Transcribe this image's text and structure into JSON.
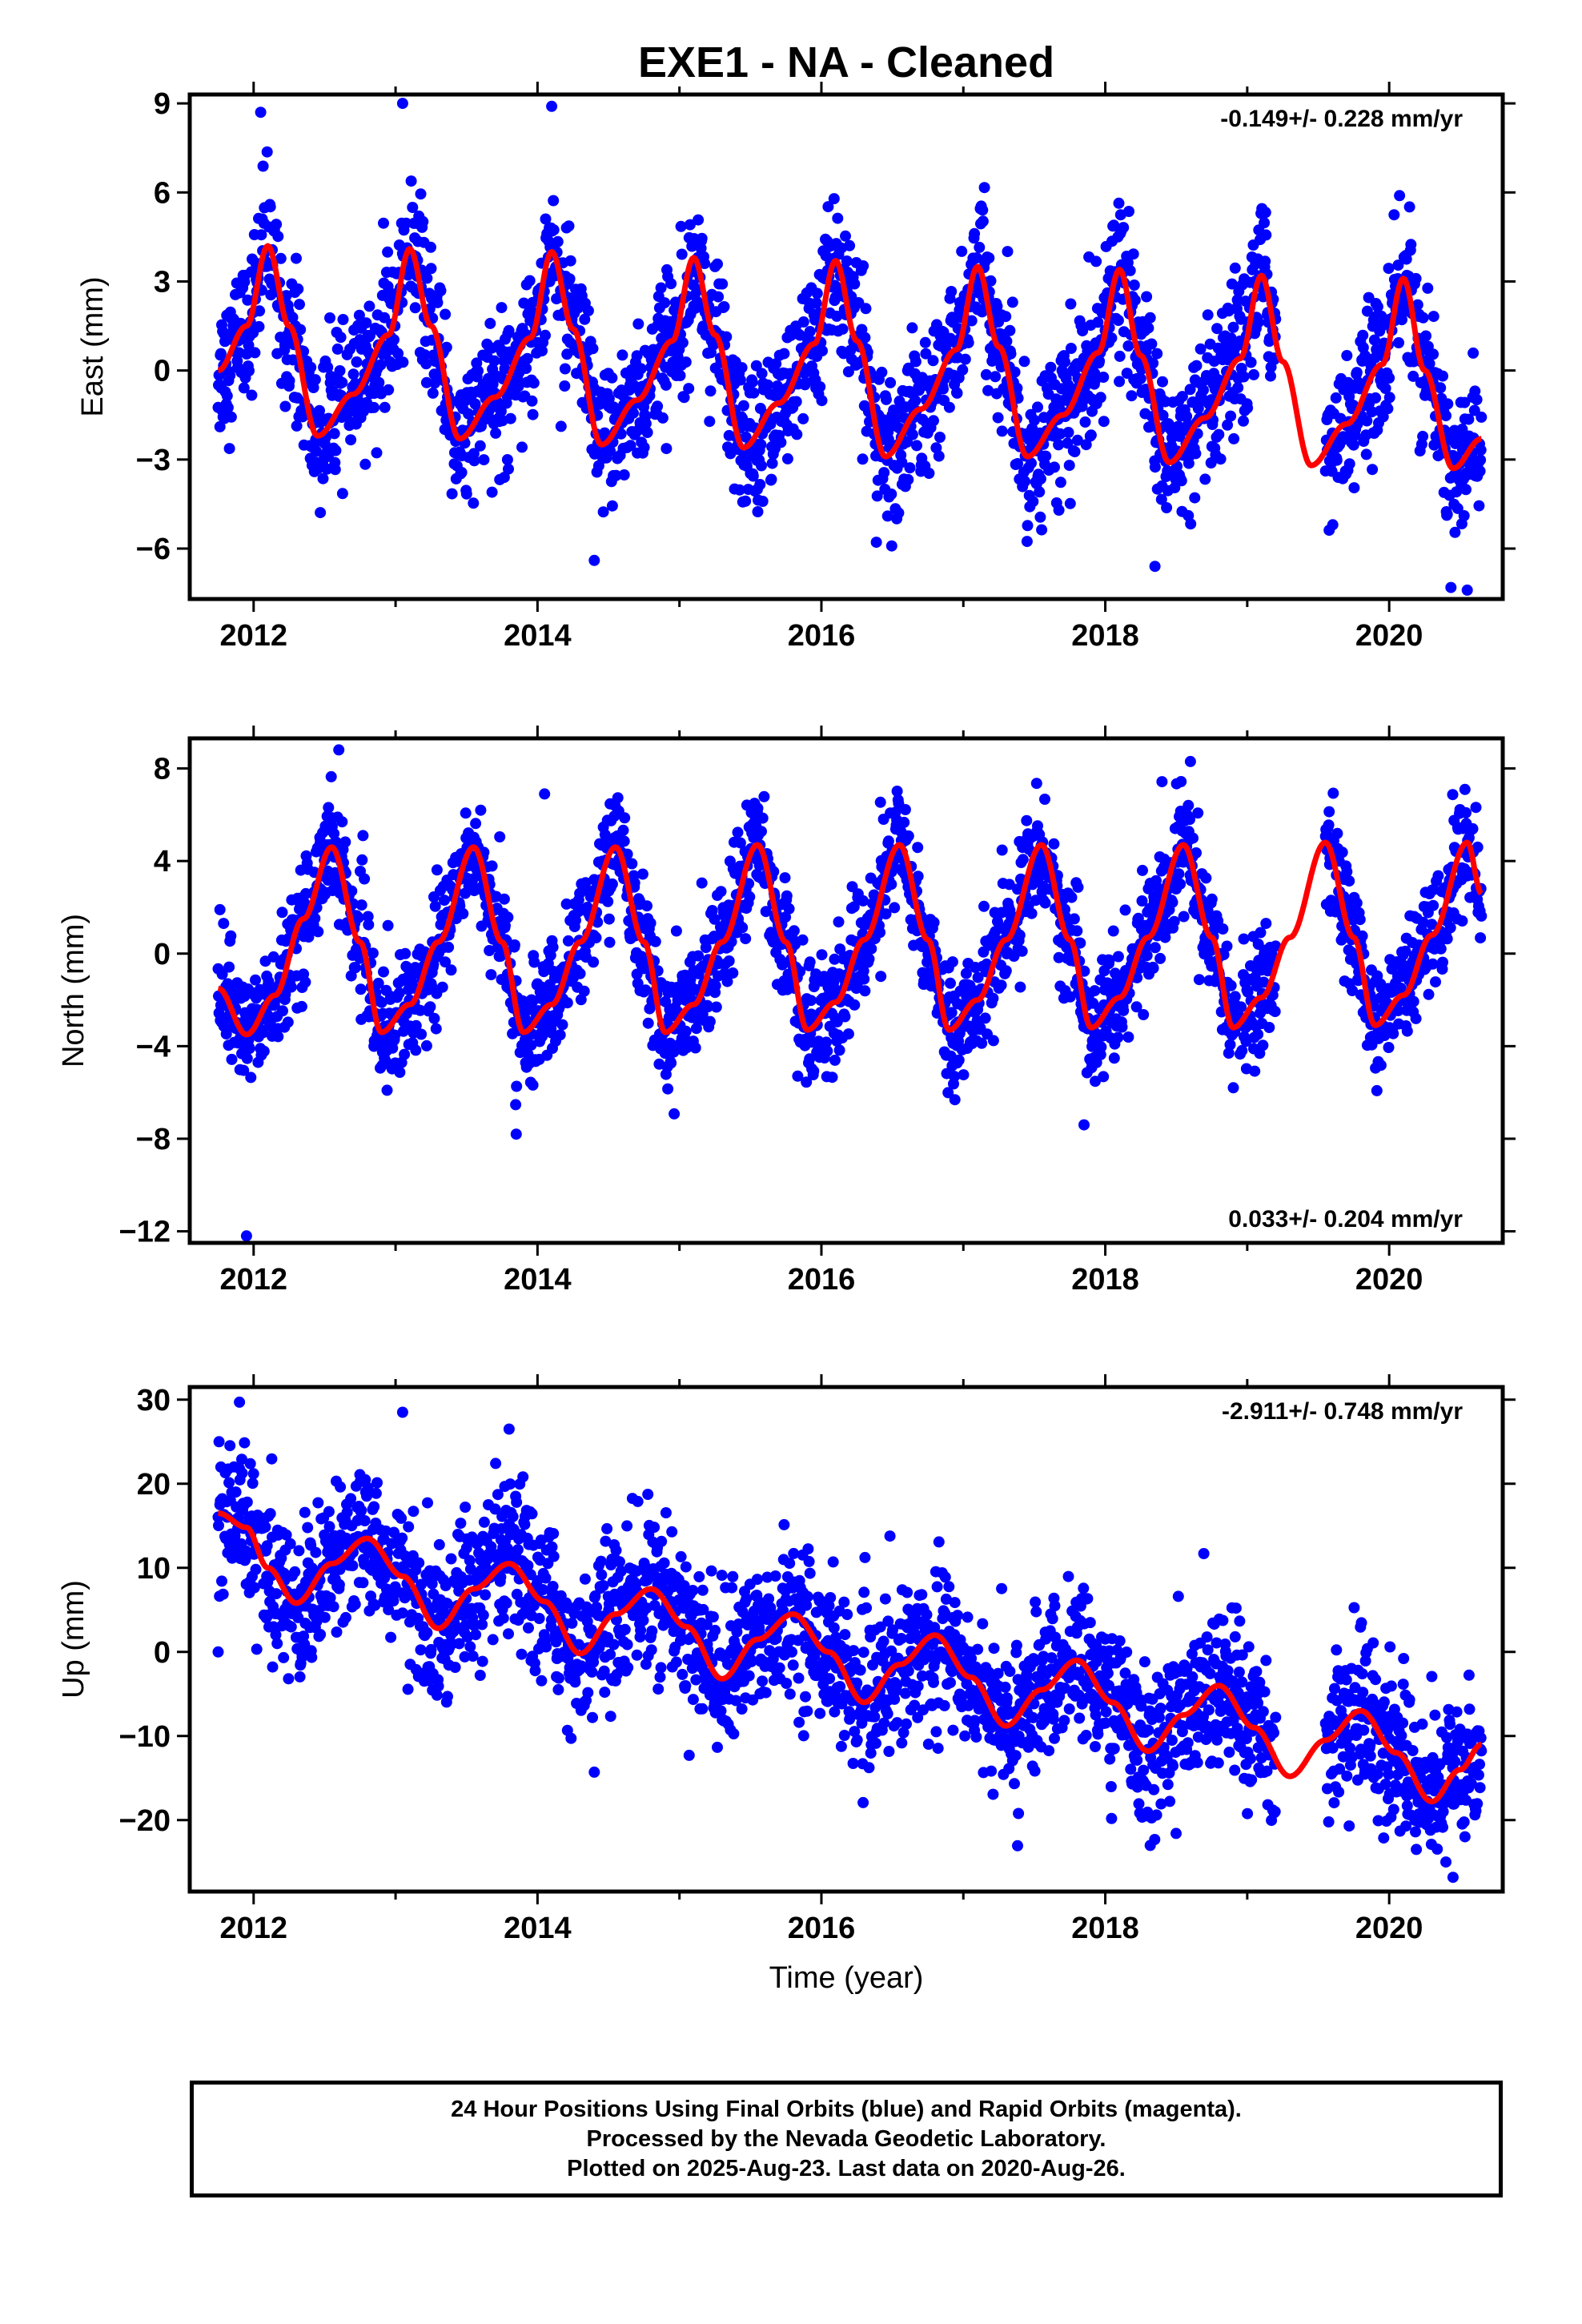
{
  "title": "EXE1  - NA - Cleaned",
  "colors": {
    "points": "#0000ff",
    "fit": "#ff0000",
    "frame": "#000000"
  },
  "xlabel": "Time (year)",
  "footer": {
    "line1": "24 Hour Positions Using Final Orbits (blue) and Rapid Orbits (magenta).",
    "line2": "Processed by the Nevada Geodetic Laboratory.",
    "line3": "Plotted on 2025-Aug-23. Last data on 2020-Aug-26."
  },
  "chart_data": [
    {
      "type": "scatter",
      "component": "east",
      "ylabel": "East (mm)",
      "rate": "-0.149+/- 0.228 mm/yr",
      "rate_position": "top-right",
      "xlim": [
        2011.55,
        2020.8
      ],
      "ylim": [
        -7.7,
        9.3
      ],
      "xticks": [
        2012,
        2014,
        2016,
        2018,
        2020
      ],
      "xtick_labels": [
        "2012",
        "2014",
        "2016",
        "2018",
        "2020"
      ],
      "yticks": [
        -6,
        -3,
        0,
        3,
        6,
        9
      ],
      "ytick_labels": [
        "−6",
        "−3",
        "0",
        "3",
        "6",
        "9"
      ],
      "data_start": 2011.75,
      "data_end": 2020.65,
      "gaps": [
        [
          2019.2,
          2019.55
        ]
      ],
      "scatter_sigma": 1.2,
      "outliers": [
        [
          2012.05,
          8.7
        ],
        [
          2013.05,
          9.0
        ],
        [
          2014.1,
          8.9
        ],
        [
          2014.4,
          -6.4
        ],
        [
          2018.35,
          -6.6
        ],
        [
          2020.55,
          -7.4
        ]
      ],
      "fit": {
        "x": [
          2011.75,
          2011.95,
          2012.1,
          2012.25,
          2012.45,
          2012.7,
          2012.95,
          2013.1,
          2013.25,
          2013.45,
          2013.7,
          2013.95,
          2014.1,
          2014.25,
          2014.45,
          2014.7,
          2014.95,
          2015.1,
          2015.25,
          2015.45,
          2015.7,
          2015.95,
          2016.1,
          2016.25,
          2016.45,
          2016.7,
          2016.95,
          2017.1,
          2017.25,
          2017.45,
          2017.7,
          2017.95,
          2018.1,
          2018.25,
          2018.45,
          2018.7,
          2018.95,
          2019.1,
          2019.25,
          2019.45,
          2019.7,
          2019.95,
          2020.1,
          2020.25,
          2020.45,
          2020.65
        ],
        "y": [
          0.0,
          1.5,
          4.2,
          1.5,
          -2.2,
          -0.8,
          1.2,
          4.1,
          1.5,
          -2.3,
          -0.9,
          1.1,
          4.0,
          1.4,
          -2.5,
          -1.0,
          1.0,
          3.8,
          1.2,
          -2.6,
          -1.1,
          0.9,
          3.7,
          1.0,
          -2.9,
          -1.3,
          0.7,
          3.5,
          0.8,
          -2.9,
          -1.5,
          0.6,
          3.4,
          0.5,
          -3.1,
          -1.6,
          0.4,
          3.2,
          0.3,
          -3.2,
          -1.8,
          0.2,
          3.1,
          0.0,
          -3.3,
          -2.3
        ]
      }
    },
    {
      "type": "scatter",
      "component": "north",
      "ylabel": "North (mm)",
      "rate": "0.033+/- 0.204 mm/yr",
      "rate_position": "bottom-right",
      "xlim": [
        2011.55,
        2020.8
      ],
      "ylim": [
        -12.5,
        9.3
      ],
      "xticks": [
        2012,
        2014,
        2016,
        2018,
        2020
      ],
      "xtick_labels": [
        "2012",
        "2014",
        "2016",
        "2018",
        "2020"
      ],
      "yticks": [
        -12,
        -8,
        -4,
        0,
        4,
        8
      ],
      "ytick_labels": [
        "−12",
        "−8",
        "−4",
        "0",
        "4",
        "8"
      ],
      "data_start": 2011.75,
      "data_end": 2020.65,
      "gaps": [
        [
          2019.2,
          2019.55
        ]
      ],
      "scatter_sigma": 1.25,
      "outliers": [
        [
          2011.95,
          -12.2
        ],
        [
          2012.6,
          8.8
        ],
        [
          2013.85,
          -7.8
        ],
        [
          2014.05,
          6.9
        ],
        [
          2017.85,
          -7.4
        ],
        [
          2018.6,
          8.3
        ]
      ],
      "fit": {
        "x": [
          2011.75,
          2011.95,
          2012.15,
          2012.35,
          2012.55,
          2012.75,
          2012.9,
          2013.1,
          2013.3,
          2013.55,
          2013.75,
          2013.9,
          2014.1,
          2014.3,
          2014.55,
          2014.75,
          2014.9,
          2015.1,
          2015.3,
          2015.55,
          2015.75,
          2015.9,
          2016.1,
          2016.3,
          2016.55,
          2016.75,
          2016.9,
          2017.1,
          2017.3,
          2017.55,
          2017.75,
          2017.9,
          2018.1,
          2018.3,
          2018.55,
          2018.75,
          2018.9,
          2019.1,
          2019.3,
          2019.55,
          2019.75,
          2019.9,
          2020.1,
          2020.3,
          2020.55,
          2020.65
        ],
        "y": [
          -1.5,
          -3.5,
          -1.8,
          1.5,
          4.6,
          0.5,
          -3.4,
          -2.2,
          0.5,
          4.6,
          0.5,
          -3.4,
          -2.2,
          0.5,
          4.6,
          0.5,
          -3.4,
          -2.2,
          0.5,
          4.7,
          0.5,
          -3.3,
          -2.1,
          0.6,
          4.7,
          0.6,
          -3.3,
          -2.0,
          0.6,
          4.7,
          0.6,
          -3.2,
          -1.9,
          0.7,
          4.7,
          0.7,
          -3.2,
          -1.9,
          0.7,
          4.8,
          0.7,
          -3.1,
          -1.8,
          0.8,
          4.8,
          2.6
        ]
      }
    },
    {
      "type": "scatter",
      "component": "up",
      "ylabel": "Up (mm)",
      "rate": "-2.911+/- 0.748 mm/yr",
      "rate_position": "top-right",
      "xlim": [
        2011.55,
        2020.8
      ],
      "ylim": [
        -28.5,
        31.5
      ],
      "xticks": [
        2012,
        2014,
        2016,
        2018,
        2020
      ],
      "xtick_labels": [
        "2012",
        "2014",
        "2016",
        "2018",
        "2020"
      ],
      "yticks": [
        -20,
        -10,
        0,
        10,
        20,
        30
      ],
      "ytick_labels": [
        "−20",
        "−10",
        "0",
        "10",
        "20",
        "30"
      ],
      "data_start": 2011.75,
      "data_end": 2020.65,
      "gaps": [
        [
          2019.2,
          2019.55
        ]
      ],
      "scatter_sigma": 4.5,
      "outliers": [
        [
          2011.9,
          29.7
        ],
        [
          2011.75,
          0.0
        ],
        [
          2013.05,
          28.5
        ],
        [
          2013.8,
          26.5
        ],
        [
          2014.4,
          -14.3
        ],
        [
          2020.45,
          -26.8
        ]
      ],
      "fit": {
        "x": [
          2011.75,
          2011.95,
          2012.1,
          2012.3,
          2012.55,
          2012.8,
          2013.05,
          2013.3,
          2013.55,
          2013.8,
          2014.05,
          2014.3,
          2014.55,
          2014.8,
          2015.05,
          2015.3,
          2015.55,
          2015.8,
          2016.05,
          2016.3,
          2016.55,
          2016.8,
          2017.05,
          2017.3,
          2017.55,
          2017.8,
          2018.05,
          2018.3,
          2018.55,
          2018.8,
          2019.05,
          2019.3,
          2019.55,
          2019.8,
          2020.05,
          2020.3,
          2020.5,
          2020.65
        ],
        "y": [
          16.5,
          14.8,
          10.0,
          5.8,
          10.5,
          13.5,
          9.0,
          2.8,
          7.5,
          10.5,
          6.0,
          -0.2,
          4.5,
          7.5,
          3.0,
          -3.2,
          1.5,
          4.5,
          0.0,
          -6.0,
          -1.5,
          2.0,
          -3.0,
          -8.8,
          -4.5,
          -1.0,
          -6.0,
          -11.8,
          -7.5,
          -4.0,
          -9.0,
          -14.8,
          -10.5,
          -7.0,
          -12.0,
          -17.8,
          -14.0,
          -11.0
        ]
      }
    }
  ]
}
